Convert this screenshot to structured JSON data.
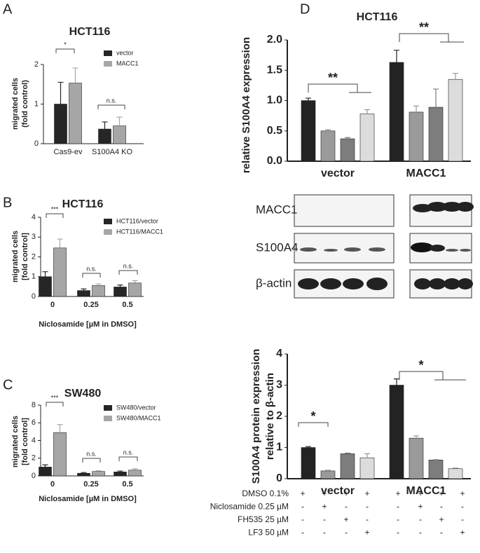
{
  "chart_data": [
    {
      "type": "bar",
      "panel": "A",
      "title": "HCT116",
      "ylabel": [
        "migrated cells",
        "(fold control)"
      ],
      "categories": [
        "Cas9-ev",
        "S100A4 KO"
      ],
      "series": [
        {
          "name": "vector",
          "color": "#262626",
          "values": [
            1.0,
            0.37
          ],
          "errors": [
            0.55,
            0.18
          ]
        },
        {
          "name": "MACC1",
          "color": "#a6a6a6",
          "values": [
            1.53,
            0.45
          ],
          "errors": [
            0.38,
            0.22
          ]
        }
      ],
      "ylim": [
        0,
        2
      ],
      "yticks": [
        0,
        1,
        2
      ],
      "annotations": [
        "*",
        "n.s."
      ]
    },
    {
      "type": "bar",
      "panel": "B",
      "title": "HCT116",
      "ylabel": [
        "migrated cells",
        "[fold control]"
      ],
      "xlabel": "Niclosamide [µM in DMSO]",
      "categories": [
        "0",
        "0.25",
        "0.5"
      ],
      "series": [
        {
          "name": "HCT116/vector",
          "color": "#262626",
          "values": [
            1.0,
            0.3,
            0.48
          ],
          "errors": [
            0.25,
            0.08,
            0.1
          ]
        },
        {
          "name": "HCT116/MACC1",
          "color": "#a6a6a6",
          "values": [
            2.45,
            0.55,
            0.68
          ],
          "errors": [
            0.45,
            0.08,
            0.12
          ]
        }
      ],
      "ylim": [
        0,
        4
      ],
      "yticks": [
        0,
        1,
        2,
        3,
        4
      ],
      "annotations": [
        "***",
        "n.s.",
        "n.s."
      ]
    },
    {
      "type": "bar",
      "panel": "C",
      "title": "SW480",
      "ylabel": [
        "migrated cells",
        "[fold control]"
      ],
      "xlabel": "Niclosamide [µM in DMSO]",
      "categories": [
        "0",
        "0.25",
        "0.5"
      ],
      "series": [
        {
          "name": "SW480/vector",
          "color": "#262626",
          "values": [
            1.0,
            0.3,
            0.45
          ],
          "errors": [
            0.25,
            0.08,
            0.1
          ]
        },
        {
          "name": "SW480/MACC1",
          "color": "#a6a6a6",
          "values": [
            4.9,
            0.5,
            0.65
          ],
          "errors": [
            0.9,
            0.08,
            0.15
          ]
        }
      ],
      "ylim": [
        0,
        8
      ],
      "yticks": [
        0,
        2,
        4,
        6,
        8
      ],
      "annotations": [
        "***",
        "n.s.",
        "n.s."
      ]
    },
    {
      "type": "bar",
      "panel": "D",
      "title": "HCT116",
      "ylabel": [
        "relative S100A4 expression"
      ],
      "categories": [
        "vector",
        "MACC1"
      ],
      "series": [
        {
          "color": "#232323",
          "values": [
            1.0,
            1.63
          ],
          "errors": [
            0.04,
            0.2
          ]
        },
        {
          "color": "#9a9a9a",
          "values": [
            0.5,
            0.81
          ],
          "errors": [
            0.02,
            0.1
          ]
        },
        {
          "color": "#7d7d7d",
          "values": [
            0.37,
            0.89
          ],
          "errors": [
            0.02,
            0.3
          ]
        },
        {
          "color": "#dcdcdc",
          "values": [
            0.78,
            1.35
          ],
          "errors": [
            0.07,
            0.1
          ]
        }
      ],
      "ylim": [
        0,
        2
      ],
      "yticks": [
        {
          "value": 0,
          "label": "0.0"
        },
        {
          "value": 0.5,
          "label": "0.5"
        },
        {
          "value": 1,
          "label": "1.0"
        },
        {
          "value": 1.5,
          "label": "1.5"
        },
        {
          "value": 2,
          "label": "2.0"
        }
      ],
      "annotations": [
        "**",
        "**"
      ]
    },
    {
      "type": "bar",
      "ylabel": [
        "S100A4 protein expression",
        "relative to β-actin"
      ],
      "categories": [
        "vector",
        "MACC1"
      ],
      "series": [
        {
          "color": "#232323",
          "values": [
            1.0,
            3.0
          ],
          "errors": [
            0.03,
            0.2
          ]
        },
        {
          "color": "#9a9a9a",
          "values": [
            0.25,
            1.3
          ],
          "errors": [
            0.02,
            0.07
          ]
        },
        {
          "color": "#7d7d7d",
          "values": [
            0.8,
            0.6
          ],
          "errors": [
            0.02,
            0.01
          ]
        },
        {
          "color": "#dcdcdc",
          "values": [
            0.67,
            0.32
          ],
          "errors": [
            0.13,
            0.02
          ]
        }
      ],
      "ylim": [
        0,
        4
      ],
      "yticks": [
        0,
        1,
        2,
        3,
        4
      ],
      "annotations": [
        "*",
        "*"
      ]
    }
  ],
  "blot": {
    "labels": [
      "MACC1",
      "S100A4",
      "β-actin"
    ]
  },
  "treatments": {
    "rows": [
      {
        "label": "DMSO 0.1%",
        "signs": [
          "+",
          "+",
          "+",
          "+",
          "+",
          "+",
          "+",
          "+"
        ]
      },
      {
        "label": "Niclosamide 0.25 µM",
        "signs": [
          "-",
          "+",
          "-",
          "-",
          "-",
          "+",
          "-",
          "-"
        ]
      },
      {
        "label": "FH535 25 µM",
        "signs": [
          "-",
          "-",
          "+",
          "-",
          "-",
          "-",
          "+",
          "-"
        ]
      },
      {
        "label": "LF3 50 µM",
        "signs": [
          "-",
          "-",
          "-",
          "+",
          "-",
          "-",
          "-",
          "+"
        ]
      }
    ]
  }
}
